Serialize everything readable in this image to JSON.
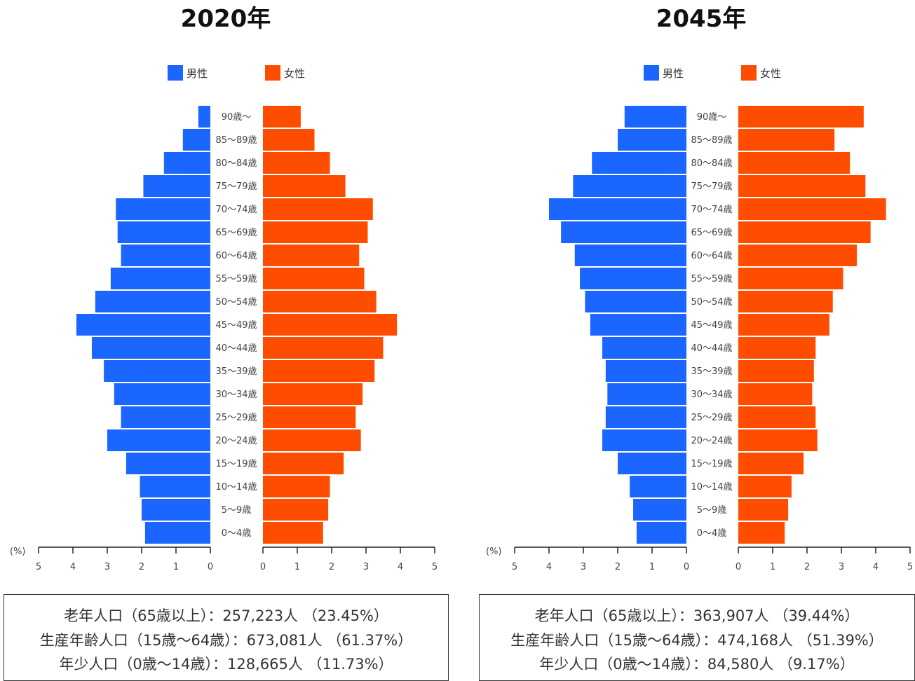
{
  "legend": {
    "male": "男性",
    "female": "女性"
  },
  "colors": {
    "male": "#1a66ff",
    "female": "#ff4d00"
  },
  "unit_label": "(%)",
  "age_groups": [
    "90歳～",
    "85～89歳",
    "80～84歳",
    "75～79歳",
    "70～74歳",
    "65～69歳",
    "60～64歳",
    "55～59歳",
    "50～54歳",
    "45～49歳",
    "40～44歳",
    "35～39歳",
    "30～34歳",
    "25～29歳",
    "20～24歳",
    "15～19歳",
    "10～14歳",
    "5～9歳",
    "0～4歳"
  ],
  "chart_data": [
    {
      "type": "bar",
      "title": "2020年",
      "categories": [
        "90歳～",
        "85～89歳",
        "80～84歳",
        "75～79歳",
        "70～74歳",
        "65～69歳",
        "60～64歳",
        "55～59歳",
        "50～54歳",
        "45～49歳",
        "40～44歳",
        "35～39歳",
        "30～34歳",
        "25～29歳",
        "20～24歳",
        "15～19歳",
        "10～14歳",
        "5～9歳",
        "0～4歳"
      ],
      "series": [
        {
          "name": "男性",
          "values": [
            0.35,
            0.8,
            1.35,
            1.95,
            2.75,
            2.7,
            2.6,
            2.9,
            3.35,
            3.9,
            3.45,
            3.1,
            2.8,
            2.6,
            3.0,
            2.45,
            2.05,
            2.0,
            1.9
          ]
        },
        {
          "name": "女性",
          "values": [
            1.1,
            1.5,
            1.95,
            2.4,
            3.2,
            3.05,
            2.8,
            2.95,
            3.3,
            3.9,
            3.5,
            3.25,
            2.9,
            2.7,
            2.85,
            2.35,
            1.95,
            1.9,
            1.75
          ]
        }
      ],
      "xlim": [
        0,
        5
      ],
      "ticks": [
        5,
        4,
        3,
        2,
        1,
        0
      ],
      "summary": [
        "老年人口（65歳以上）：257,223人 （23.45%）",
        "生産年齢人口（15歳～64歳）：673,081人 （61.37%）",
        "年少人口（0歳～14歳）：128,665人 （11.73%）"
      ]
    },
    {
      "type": "bar",
      "title": "2045年",
      "categories": [
        "90歳～",
        "85～89歳",
        "80～84歳",
        "75～79歳",
        "70～74歳",
        "65～69歳",
        "60～64歳",
        "55～59歳",
        "50～54歳",
        "45～49歳",
        "40～44歳",
        "35～39歳",
        "30～34歳",
        "25～29歳",
        "20～24歳",
        "15～19歳",
        "10～14歳",
        "5～9歳",
        "0～4歳"
      ],
      "series": [
        {
          "name": "男性",
          "values": [
            1.8,
            2.0,
            2.75,
            3.3,
            4.0,
            3.65,
            3.25,
            3.1,
            2.95,
            2.8,
            2.45,
            2.35,
            2.3,
            2.35,
            2.45,
            2.0,
            1.65,
            1.55,
            1.45
          ]
        },
        {
          "name": "女性",
          "values": [
            3.65,
            2.8,
            3.25,
            3.7,
            4.3,
            3.85,
            3.45,
            3.05,
            2.75,
            2.65,
            2.25,
            2.2,
            2.15,
            2.25,
            2.3,
            1.9,
            1.55,
            1.45,
            1.35
          ]
        }
      ],
      "xlim": [
        0,
        5
      ],
      "ticks": [
        5,
        4,
        3,
        2,
        1,
        0
      ],
      "summary": [
        "老年人口（65歳以上）：363,907人 （39.44%）",
        "生産年齢人口（15歳～64歳）：474,168人 （51.39%）",
        "年少人口（0歳～14歳）：84,580人 （9.17%）"
      ]
    }
  ]
}
